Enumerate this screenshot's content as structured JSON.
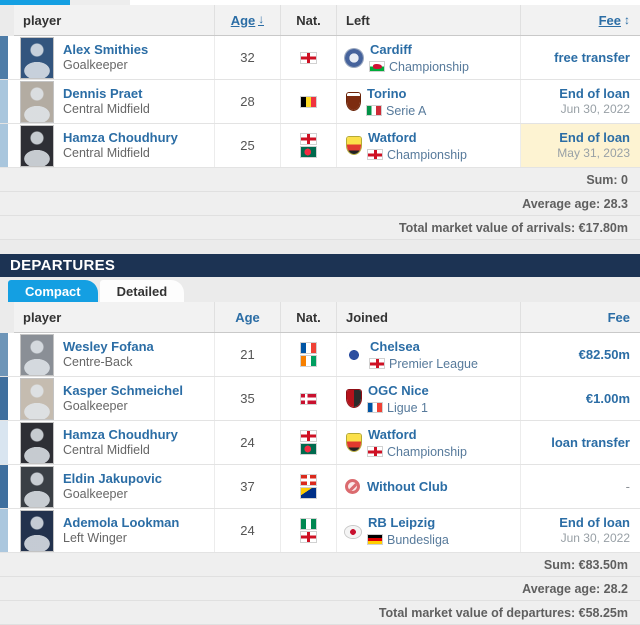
{
  "icons": {
    "sort_desc": "↓",
    "sort_both": "↕"
  },
  "colors": {
    "accent_blue": "#149fe2",
    "link_blue": "#2b6da5",
    "navy_header": "#1c3353",
    "highlight_yellow": "#fdf3d2"
  },
  "arrivals": {
    "columns": {
      "player": "player",
      "age": "Age",
      "nat": "Nat.",
      "club": "Left",
      "fee": "Fee"
    },
    "rows": [
      {
        "name": "Alex Smithies",
        "position": "Goalkeeper",
        "age": "32",
        "nats": [
          "england"
        ],
        "club": "Cardiff",
        "crest": "cardiff",
        "league": "Championship",
        "league_flag": "wales",
        "fee": "free transfer",
        "fee_sub": "",
        "highlight": false,
        "edge": "#4e7ca7",
        "photo_bg": "#33557e"
      },
      {
        "name": "Dennis Praet",
        "position": "Central Midfield",
        "age": "28",
        "nats": [
          "belgium"
        ],
        "club": "Torino",
        "crest": "torino",
        "league": "Serie A",
        "league_flag": "italy",
        "fee": "End of loan",
        "fee_sub": "Jun 30, 2022",
        "highlight": false,
        "edge": "#a9c6dd",
        "photo_bg": "#b3aca2"
      },
      {
        "name": "Hamza Choudhury",
        "position": "Central Midfield",
        "age": "25",
        "nats": [
          "england",
          "bangladesh"
        ],
        "club": "Watford",
        "crest": "watford",
        "league": "Championship",
        "league_flag": "england",
        "fee": "End of loan",
        "fee_sub": "May 31, 2023",
        "highlight": true,
        "edge": "#a9c6dd",
        "photo_bg": "#2e2f35"
      }
    ],
    "summary": {
      "sum": "Sum: 0",
      "avg": "Average age: 28.3",
      "total": "Total market value of arrivals: €17.80m"
    }
  },
  "departures": {
    "title": "Departures",
    "tabs": [
      {
        "label": "Compact",
        "active": true
      },
      {
        "label": "Detailed",
        "active": false
      }
    ],
    "columns": {
      "player": "player",
      "age": "Age",
      "nat": "Nat.",
      "club": "Joined",
      "fee": "Fee"
    },
    "rows": [
      {
        "name": "Wesley Fofana",
        "position": "Centre-Back",
        "age": "21",
        "nats": [
          "france",
          "ivory_coast"
        ],
        "club": "Chelsea",
        "crest": "chelsea",
        "league": "Premier League",
        "league_flag": "england",
        "fee": "€82.50m",
        "fee_sub": "",
        "highlight": false,
        "edge": "#6e95b8",
        "photo_bg": "#8a8f96"
      },
      {
        "name": "Kasper Schmeichel",
        "position": "Goalkeeper",
        "age": "35",
        "nats": [
          "denmark"
        ],
        "club": "OGC Nice",
        "crest": "nice",
        "league": "Ligue 1",
        "league_flag": "france",
        "fee": "€1.00m",
        "fee_sub": "",
        "highlight": false,
        "edge": "#3f6f9e",
        "photo_bg": "#c5bcb0"
      },
      {
        "name": "Hamza Choudhury",
        "position": "Central Midfield",
        "age": "24",
        "nats": [
          "england",
          "bangladesh"
        ],
        "club": "Watford",
        "crest": "watford",
        "league": "Championship",
        "league_flag": "england",
        "fee": "loan transfer",
        "fee_sub": "",
        "highlight": false,
        "edge": "#d9e5f0",
        "photo_bg": "#2e2f35"
      },
      {
        "name": "Eldin Jakupovic",
        "position": "Goalkeeper",
        "age": "37",
        "nats": [
          "switzerland",
          "bosnia"
        ],
        "club": "Without Club",
        "crest": "withoutclub",
        "league": "",
        "league_flag": "",
        "fee": "-",
        "fee_sub": "",
        "highlight": false,
        "edge": "#3f6f9e",
        "photo_bg": "#3a3f45"
      },
      {
        "name": "Ademola Lookman",
        "position": "Left Winger",
        "age": "24",
        "nats": [
          "nigeria",
          "england"
        ],
        "club": "RB Leipzig",
        "crest": "leipzig",
        "league": "Bundesliga",
        "league_flag": "germany",
        "fee": "End of loan",
        "fee_sub": "Jun 30, 2022",
        "highlight": false,
        "edge": "#abc7de",
        "photo_bg": "#23324d"
      }
    ],
    "summary": {
      "sum": "Sum: €83.50m",
      "avg": "Average age: 28.2",
      "total": "Total market value of departures: €58.25m"
    }
  }
}
